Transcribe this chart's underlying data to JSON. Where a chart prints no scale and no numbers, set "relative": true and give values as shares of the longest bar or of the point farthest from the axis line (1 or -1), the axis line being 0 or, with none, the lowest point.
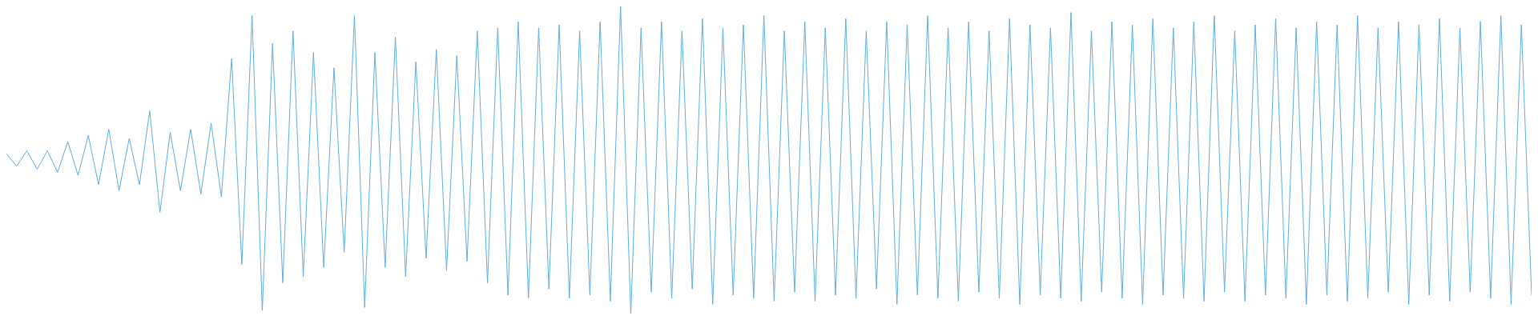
{
  "chart_data": {
    "type": "line",
    "relative": true,
    "categories": [
      null,
      null,
      null,
      null,
      null,
      null,
      null,
      null,
      null,
      null,
      null,
      null,
      null,
      null,
      null,
      null,
      null,
      null,
      null,
      null,
      null,
      null,
      null,
      null,
      null,
      null,
      null,
      null,
      null,
      null,
      null,
      null,
      null,
      null,
      null,
      null,
      null,
      null,
      null,
      null,
      null,
      null,
      null,
      null,
      null,
      null,
      null,
      null,
      null,
      null,
      null,
      null,
      null,
      null,
      null,
      null,
      null,
      null,
      null,
      null,
      null,
      null,
      null,
      null,
      null,
      null,
      null,
      null,
      null,
      null,
      null,
      null,
      null,
      null,
      null,
      null,
      null,
      null,
      null,
      null,
      null,
      null,
      null,
      null,
      null,
      null,
      null,
      null,
      null,
      null,
      null,
      null,
      null,
      null,
      null,
      null,
      null,
      null,
      null,
      null,
      null,
      null,
      null,
      null,
      null,
      null,
      null,
      null,
      null,
      null,
      null,
      null,
      null,
      null,
      null,
      null,
      null,
      null,
      null,
      null,
      null,
      null,
      null,
      null,
      null,
      null,
      null,
      null,
      null,
      null,
      null,
      null,
      null,
      null,
      null,
      null,
      null,
      null,
      null,
      null,
      null,
      null,
      null,
      null,
      null,
      null,
      null,
      null,
      null,
      null
    ],
    "series": [
      {
        "color": "#5dade2",
        "values": [
          0.52,
          0.48,
          0.53,
          0.47,
          0.53,
          0.46,
          0.56,
          0.45,
          0.58,
          0.42,
          0.6,
          0.4,
          0.57,
          0.42,
          0.66,
          0.33,
          0.59,
          0.4,
          0.6,
          0.39,
          0.62,
          0.38,
          0.83,
          0.16,
          0.97,
          0.01,
          0.88,
          0.1,
          0.92,
          0.12,
          0.85,
          0.15,
          0.8,
          0.2,
          0.97,
          0.02,
          0.85,
          0.15,
          0.9,
          0.12,
          0.82,
          0.18,
          0.86,
          0.14,
          0.84,
          0.17,
          0.92,
          0.1,
          0.93,
          0.06,
          0.95,
          0.05,
          0.93,
          0.08,
          0.94,
          0.05,
          0.92,
          0.06,
          0.95,
          0.04,
          1,
          0,
          0.93,
          0.07,
          0.95,
          0.05,
          0.92,
          0.08,
          0.96,
          0.03,
          0.93,
          0.06,
          0.94,
          0.05,
          0.97,
          0.04,
          0.92,
          0.07,
          0.95,
          0.04,
          0.93,
          0.06,
          0.96,
          0.05,
          0.92,
          0.08,
          0.95,
          0.03,
          0.94,
          0.06,
          0.97,
          0.05,
          0.93,
          0.04,
          0.95,
          0.07,
          0.92,
          0.05,
          0.96,
          0.03,
          0.94,
          0.06,
          0.93,
          0.05,
          0.98,
          0.04,
          0.92,
          0.07,
          0.95,
          0.05,
          0.94,
          0.03,
          0.96,
          0.06,
          0.93,
          0.05,
          0.95,
          0.04,
          0.97,
          0.07,
          0.92,
          0.04,
          0.94,
          0.06,
          0.96,
          0.05,
          0.93,
          0.03,
          0.95,
          0.06,
          0.94,
          0.04,
          0.97,
          0.05,
          0.93,
          0.07,
          0.95,
          0.03,
          0.94,
          0.06,
          0.96,
          0.04,
          0.93,
          0.07,
          0.95,
          0.05,
          0.97,
          0.03,
          0.94,
          0.06
        ]
      }
    ]
  }
}
